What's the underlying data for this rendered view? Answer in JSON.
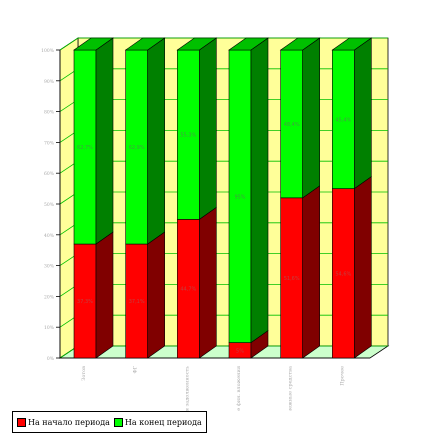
{
  "chart_data": {
    "type": "bar",
    "stacked": true,
    "percent": true,
    "three_d": true,
    "categories": [
      "Зотов",
      "ФГ",
      "Дебиторская задолженность",
      "Прочие фин. вложения",
      "Денежные средства",
      "Прочее"
    ],
    "series": [
      {
        "name": "На начало периода",
        "color": "#ff0000",
        "side_color": "#800000",
        "top_color": "#c00000",
        "values": [
          37,
          37,
          45,
          5,
          52,
          55
        ],
        "labels": [
          "37,3%",
          "37,1%",
          "44,7%",
          "5%",
          "51,6%",
          "54,6%"
        ]
      },
      {
        "name": "На конец периода",
        "color": "#00ff00",
        "side_color": "#008000",
        "top_color": "#00c000",
        "values": [
          63,
          63,
          55,
          95,
          48,
          45
        ],
        "labels": [
          "62,7%",
          "62,9%",
          "55,3%",
          "95%",
          "48,4%",
          "45,4%"
        ]
      }
    ],
    "ylim": [
      0,
      100
    ],
    "yticks": [
      "0%",
      "10%",
      "20%",
      "30%",
      "40%",
      "50%",
      "60%",
      "70%",
      "80%",
      "90%",
      "100%"
    ],
    "grid": true,
    "wall_color": "#ffff99",
    "floor_color": "#ccffcc",
    "gridline_color": "#00c000",
    "legend_position": "bottom-left"
  },
  "legend": {
    "items": [
      {
        "label": "На начало периода",
        "color": "#ff0000"
      },
      {
        "label": "На конец периода",
        "color": "#00ff00"
      }
    ]
  }
}
